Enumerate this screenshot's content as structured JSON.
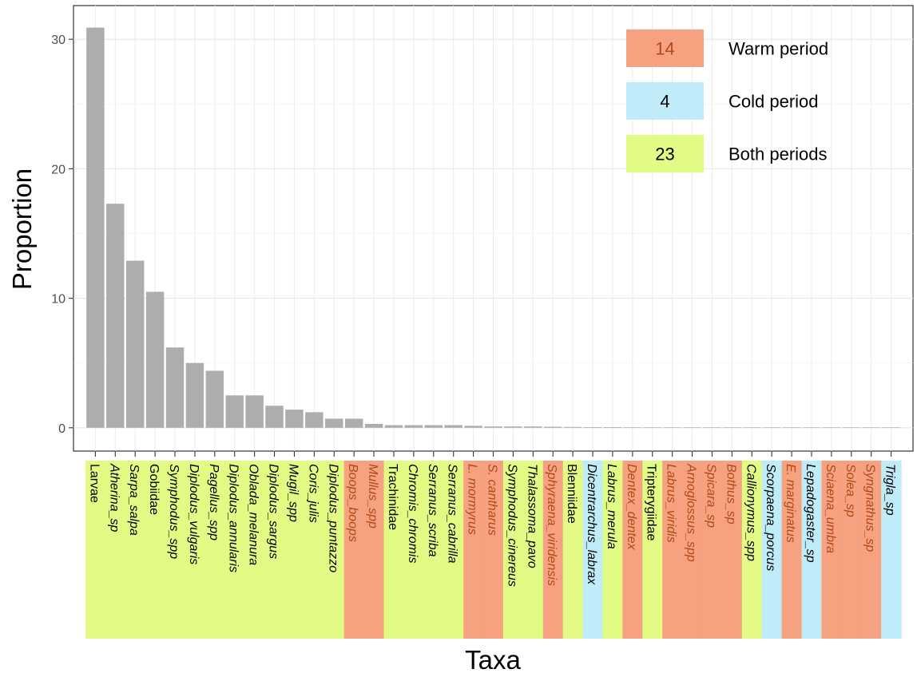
{
  "chart_data": {
    "type": "bar",
    "title": "",
    "xlabel": "Taxa",
    "ylabel": "Proportion",
    "ylim": [
      -1.8,
      32.6
    ],
    "yticks": [
      0,
      10,
      20,
      30
    ],
    "grid": true,
    "legend_position": "top-right",
    "bar_color": "#adadad",
    "period_colors": {
      "warm": "#f6a17f",
      "cold": "#c0ecfa",
      "both": "#e2fb84"
    },
    "label_colors": {
      "warm": "#b04a1a",
      "cold": "#000000",
      "both": "#000000"
    },
    "legend": [
      {
        "period": "warm",
        "count": "14",
        "label": "Warm period"
      },
      {
        "period": "cold",
        "count": "4",
        "label": "Cold period"
      },
      {
        "period": "both",
        "count": "23",
        "label": "Both periods"
      }
    ],
    "categories": [
      {
        "name": "Larvae",
        "value": 30.9,
        "period": "both",
        "italic": false
      },
      {
        "name": "Atherina_sp",
        "value": 17.3,
        "period": "both",
        "italic": true
      },
      {
        "name": "Sarpa_salpa",
        "value": 12.9,
        "period": "both",
        "italic": true
      },
      {
        "name": "Gobiidae",
        "value": 10.5,
        "period": "both",
        "italic": false
      },
      {
        "name": "Symphodus_spp",
        "value": 6.2,
        "period": "both",
        "italic": true
      },
      {
        "name": "Diplodus_vulgaris",
        "value": 5.0,
        "period": "both",
        "italic": true
      },
      {
        "name": "Pagellus_spp",
        "value": 4.4,
        "period": "both",
        "italic": true
      },
      {
        "name": "Diplodus_annularis",
        "value": 2.5,
        "period": "both",
        "italic": true
      },
      {
        "name": "Oblada_melanura",
        "value": 2.5,
        "period": "both",
        "italic": true
      },
      {
        "name": "Diplodus_sargus",
        "value": 1.7,
        "period": "both",
        "italic": true
      },
      {
        "name": "Mugil_spp",
        "value": 1.4,
        "period": "both",
        "italic": true
      },
      {
        "name": "Coris_julis",
        "value": 1.2,
        "period": "both",
        "italic": true
      },
      {
        "name": "Diplodus_puntazzo",
        "value": 0.7,
        "period": "both",
        "italic": true
      },
      {
        "name": "Boops_boops",
        "value": 0.7,
        "period": "warm",
        "italic": true
      },
      {
        "name": "Mullus_spp",
        "value": 0.3,
        "period": "warm",
        "italic": true
      },
      {
        "name": "Trachinidae",
        "value": 0.2,
        "period": "both",
        "italic": false
      },
      {
        "name": "Chromis_chromis",
        "value": 0.2,
        "period": "both",
        "italic": true
      },
      {
        "name": "Serranus_scriba",
        "value": 0.2,
        "period": "both",
        "italic": true
      },
      {
        "name": "Serranus_cabrilla",
        "value": 0.2,
        "period": "both",
        "italic": true
      },
      {
        "name": "L. mormyrus",
        "value": 0.15,
        "period": "warm",
        "italic": true
      },
      {
        "name": "S. cantharus",
        "value": 0.1,
        "period": "warm",
        "italic": true
      },
      {
        "name": "Symphodus_cinereus",
        "value": 0.1,
        "period": "both",
        "italic": true
      },
      {
        "name": "Thalassoma_pavo",
        "value": 0.1,
        "period": "both",
        "italic": true
      },
      {
        "name": "Sphyraena_viridensis",
        "value": 0.08,
        "period": "warm",
        "italic": true
      },
      {
        "name": "Blenniidae",
        "value": 0.06,
        "period": "both",
        "italic": false
      },
      {
        "name": "Dicentrarchus_labrax",
        "value": 0.05,
        "period": "cold",
        "italic": true
      },
      {
        "name": "Labrus_merula",
        "value": 0.05,
        "period": "both",
        "italic": true
      },
      {
        "name": "Dentex_dentex",
        "value": 0.04,
        "period": "warm",
        "italic": true
      },
      {
        "name": "Tripterygiidae",
        "value": 0.04,
        "period": "both",
        "italic": false
      },
      {
        "name": "Labrus_viridis",
        "value": 0.03,
        "period": "warm",
        "italic": true
      },
      {
        "name": "Arnoglossus_spp",
        "value": 0.03,
        "period": "warm",
        "italic": true
      },
      {
        "name": "Spicara_sp",
        "value": 0.03,
        "period": "warm",
        "italic": true
      },
      {
        "name": "Bothus_sp",
        "value": 0.03,
        "period": "warm",
        "italic": true
      },
      {
        "name": "Callionymus_spp",
        "value": 0.02,
        "period": "both",
        "italic": true
      },
      {
        "name": "Scorpaena_porcus",
        "value": 0.02,
        "period": "cold",
        "italic": true
      },
      {
        "name": "E. marginatus",
        "value": 0.02,
        "period": "warm",
        "italic": true
      },
      {
        "name": "Lepadogaster_sp",
        "value": 0.02,
        "period": "cold",
        "italic": true
      },
      {
        "name": "Sciaena_umbra",
        "value": 0.01,
        "period": "warm",
        "italic": true
      },
      {
        "name": "Solea_sp",
        "value": 0.01,
        "period": "warm",
        "italic": true
      },
      {
        "name": "Syngnathus_sp",
        "value": 0.01,
        "period": "warm",
        "italic": true
      },
      {
        "name": "Trigla_sp",
        "value": 0.01,
        "period": "cold",
        "italic": true
      }
    ]
  }
}
